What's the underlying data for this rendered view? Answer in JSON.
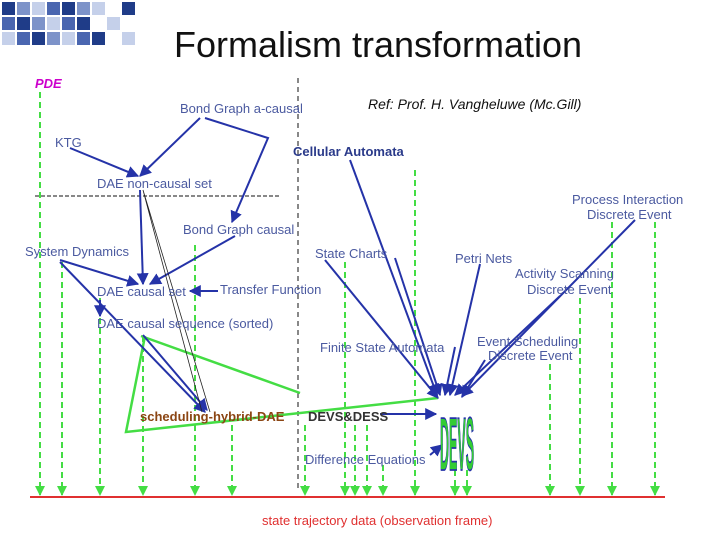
{
  "title": "Formalism transformation",
  "reference": "Ref: Prof. H. Vangheluwe (Mc.Gill)",
  "nodes": [
    {
      "label": "PDE"
    },
    {
      "label": "Bond Graph a-causal"
    },
    {
      "label": "KTG"
    },
    {
      "label": "Cellular Automata"
    },
    {
      "label": "DAE non-causal set"
    },
    {
      "lines": [
        "Process Interaction",
        "Discrete Event"
      ]
    },
    {
      "label": "Bond Graph causal"
    },
    {
      "label": "System Dynamics"
    },
    {
      "label": "State Charts"
    },
    {
      "label": "Petri Nets"
    },
    {
      "lines": [
        "Activity Scanning",
        "Discrete Event"
      ]
    },
    {
      "label": "DAE causal set"
    },
    {
      "label": "Transfer Function"
    },
    {
      "label": "DAE causal sequence (sorted)"
    },
    {
      "label": "Finite State Automata"
    },
    {
      "lines": [
        "Event Scheduling",
        "Discrete Event"
      ]
    },
    {
      "label": "scheduling-hybrid-DAE"
    },
    {
      "label": "DEVS&DESS"
    },
    {
      "label": "DEVS"
    },
    {
      "label": "Difference Equations"
    }
  ],
  "footer": "state trajectory data (observation frame)"
}
